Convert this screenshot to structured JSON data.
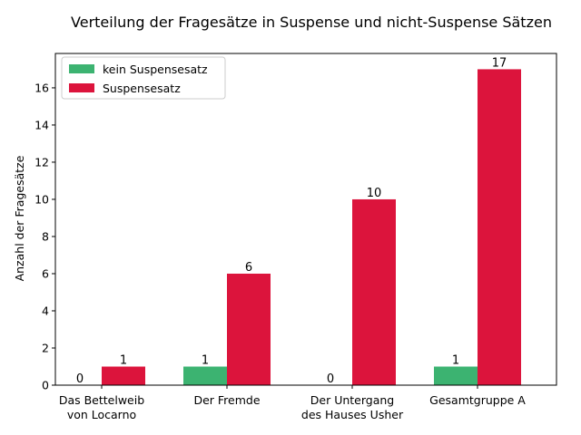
{
  "chart_data": {
    "type": "bar",
    "title": "Verteilung der Fragesätze in Suspense und nicht-Suspense Sätzen",
    "xlabel": "",
    "ylabel": "Anzahl der Fragesätze",
    "categories": [
      [
        "Das Bettelweib",
        "von Locarno"
      ],
      [
        "Der Fremde"
      ],
      [
        "Der Untergang",
        "des Hauses Usher"
      ],
      [
        "Gesamtgruppe A"
      ]
    ],
    "series": [
      {
        "name": "kein Suspensesatz",
        "color": "#3cb371",
        "values": [
          0,
          1,
          0,
          1
        ],
        "labels": [
          "0",
          "1",
          "0",
          "1"
        ]
      },
      {
        "name": "Suspensesatz",
        "color": "#dc143c",
        "values": [
          1,
          6,
          10,
          17
        ],
        "labels": [
          "1",
          "6",
          "10",
          "17"
        ]
      }
    ],
    "ylim": [
      0,
      17.85
    ],
    "yticks": [
      0,
      2,
      4,
      6,
      8,
      10,
      12,
      14,
      16
    ],
    "ytick_labels": [
      "0",
      "2",
      "4",
      "6",
      "8",
      "10",
      "12",
      "14",
      "16"
    ],
    "grid": false,
    "legend": "top-left"
  }
}
